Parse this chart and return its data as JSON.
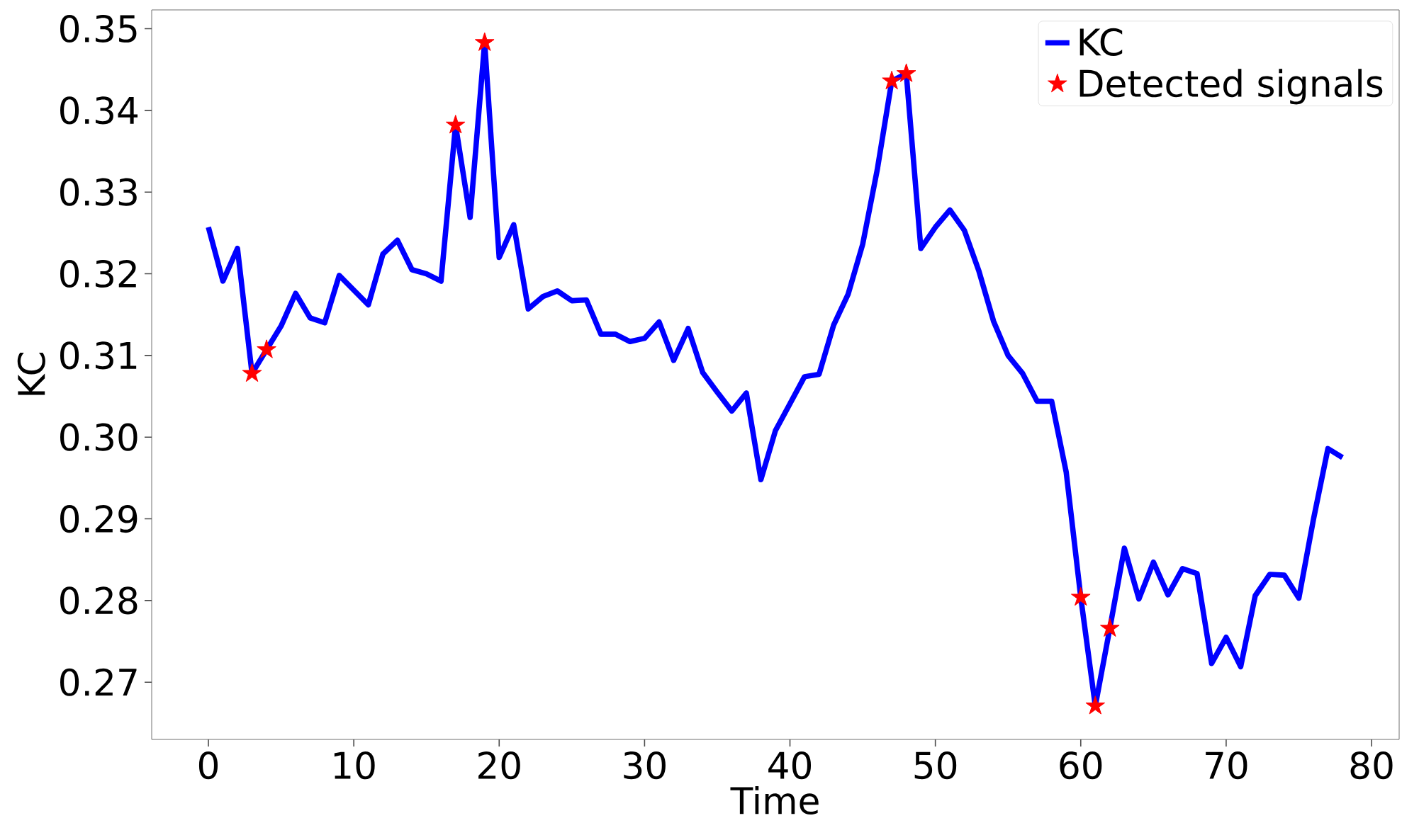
{
  "chart_data": {
    "type": "line",
    "xlabel": "Time",
    "ylabel": "KC",
    "x": [
      0,
      1,
      2,
      3,
      4,
      5,
      6,
      7,
      8,
      9,
      10,
      11,
      12,
      13,
      14,
      15,
      16,
      17,
      18,
      19,
      20,
      21,
      22,
      23,
      24,
      25,
      26,
      27,
      28,
      29,
      30,
      31,
      32,
      33,
      34,
      35,
      36,
      37,
      38,
      39,
      40,
      41,
      42,
      43,
      44,
      45,
      46,
      47,
      48,
      49,
      50,
      51,
      52,
      53,
      54,
      55,
      56,
      57,
      58,
      59,
      60,
      61,
      62,
      63,
      64,
      65,
      66,
      67,
      68,
      69,
      70,
      71,
      72,
      73,
      74,
      75,
      76,
      77,
      78
    ],
    "series": [
      {
        "name": "KC",
        "color": "#0000ff",
        "values": [
          0.3257,
          0.3191,
          0.3231,
          0.3078,
          0.3107,
          0.3136,
          0.3176,
          0.3146,
          0.314,
          0.3198,
          0.318,
          0.3162,
          0.3224,
          0.3241,
          0.3205,
          0.32,
          0.3191,
          0.3382,
          0.3269,
          0.3483,
          0.322,
          0.326,
          0.3157,
          0.3172,
          0.3179,
          0.3167,
          0.3168,
          0.3126,
          0.3126,
          0.3117,
          0.3121,
          0.3141,
          0.3094,
          0.3133,
          0.3079,
          0.3055,
          0.3032,
          0.3054,
          0.2948,
          0.3008,
          0.3041,
          0.3074,
          0.3077,
          0.3137,
          0.3175,
          0.3236,
          0.3327,
          0.3436,
          0.3445,
          0.3231,
          0.3257,
          0.3278,
          0.3253,
          0.3203,
          0.3142,
          0.31,
          0.3078,
          0.3044,
          0.3044,
          0.2957,
          0.2804,
          0.2671,
          0.2766,
          0.2864,
          0.2802,
          0.2847,
          0.2807,
          0.2839,
          0.2833,
          0.2723,
          0.2755,
          0.2719,
          0.2806,
          0.2832,
          0.2831,
          0.2803,
          0.2899,
          0.2986,
          0.2975
        ]
      },
      {
        "name": "Detected signals",
        "type": "scatter",
        "marker": "star",
        "color": "#ff0000",
        "x": [
          3,
          4,
          17,
          19,
          47,
          48,
          60,
          61,
          62
        ],
        "values": [
          0.3078,
          0.3107,
          0.3382,
          0.3483,
          0.3436,
          0.3445,
          0.2804,
          0.2671,
          0.2766
        ]
      }
    ],
    "xlim": [
      -3.9,
      81.9
    ],
    "ylim": [
      0.263,
      0.3523
    ],
    "xticks": [
      0,
      10,
      20,
      30,
      40,
      50,
      60,
      70,
      80
    ],
    "yticks": [
      0.27,
      0.28,
      0.29,
      {
        "value": 0.3,
        "label": "0.30"
      },
      0.31,
      0.32,
      0.33,
      0.34,
      0.35
    ],
    "grid": false,
    "legend": "top right"
  }
}
